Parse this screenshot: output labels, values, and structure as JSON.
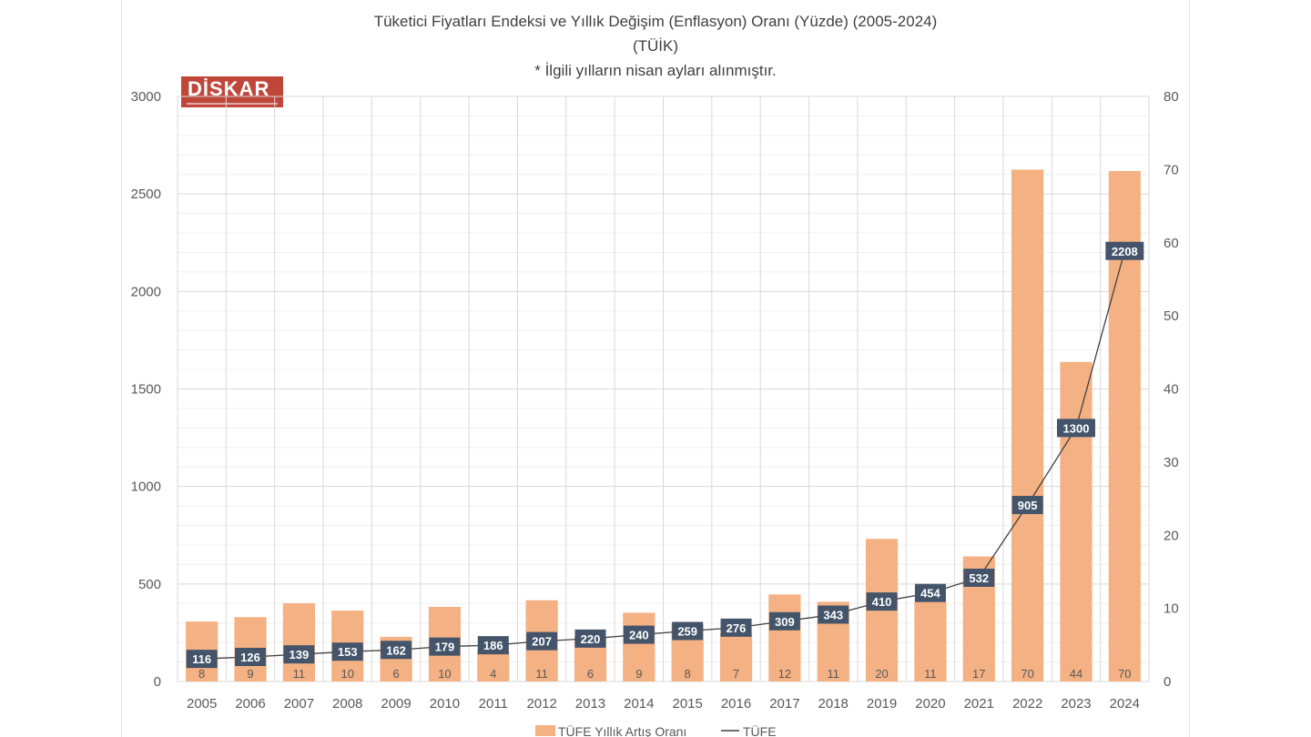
{
  "chart_data": {
    "type": "bar",
    "title": "Tüketici Fiyatları Endeksi ve Yıllık Değişim (Enflasyon) Oranı (Yüzde) (2005-2024)",
    "subtitle": "(TÜİK)",
    "note": "* İlgili yılların nisan ayları alınmıştır.",
    "categories": [
      "2005",
      "2006",
      "2007",
      "2008",
      "2009",
      "2010",
      "2011",
      "2012",
      "2013",
      "2014",
      "2015",
      "2016",
      "2017",
      "2018",
      "2019",
      "2020",
      "2021",
      "2022",
      "2023",
      "2024"
    ],
    "series": [
      {
        "name": "TÜFE Yıllık Artış Oranı",
        "type": "bar",
        "axis": "right",
        "color": "#f4b183",
        "values": [
          8.2,
          8.8,
          10.7,
          9.7,
          6.1,
          10.2,
          4.3,
          11.1,
          6.1,
          9.4,
          7.9,
          6.6,
          11.9,
          10.9,
          19.5,
          10.9,
          17.1,
          70.0,
          43.7,
          69.8
        ],
        "labels": [
          "8",
          "9",
          "11",
          "10",
          "6",
          "10",
          "4",
          "11",
          "6",
          "9",
          "8",
          "7",
          "12",
          "11",
          "20",
          "11",
          "17",
          "70",
          "44",
          "70"
        ]
      },
      {
        "name": "TÜFE",
        "type": "line",
        "axis": "left",
        "color": "#404040",
        "label_bg": "#44546a",
        "values": [
          116,
          126,
          139,
          153,
          162,
          179,
          186,
          207,
          220,
          240,
          259,
          276,
          309,
          343,
          410,
          454,
          532,
          905,
          1300,
          2208
        ]
      }
    ],
    "left_axis": {
      "ylim": [
        0,
        3000
      ],
      "ticks": [
        0,
        500,
        1000,
        1500,
        2000,
        2500,
        3000
      ]
    },
    "right_axis": {
      "ylim": [
        0,
        80
      ],
      "ticks": [
        0,
        10,
        20,
        30,
        40,
        50,
        60,
        70,
        80
      ]
    },
    "grid": true,
    "legend_position": "bottom"
  },
  "logo": {
    "text": "DİSKAR"
  }
}
